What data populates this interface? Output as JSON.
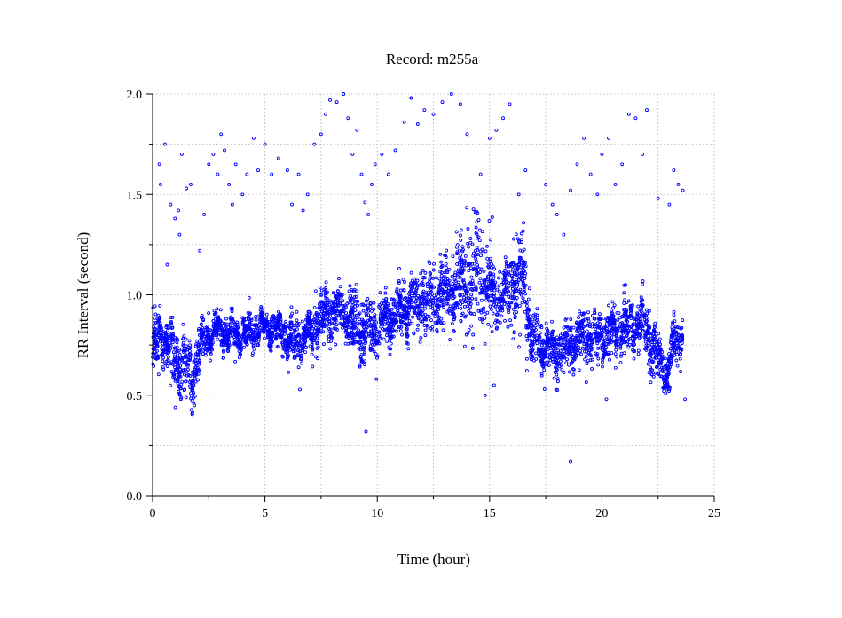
{
  "chart_data": {
    "type": "scatter",
    "title": "Record:  m255a",
    "xlabel": "Time (hour)",
    "ylabel": "RR Interval (second)",
    "xlim": [
      0,
      25
    ],
    "ylim": [
      0,
      2
    ],
    "x_ticks": [
      0,
      5,
      10,
      15,
      20,
      25
    ],
    "x_tick_labels": [
      "0",
      "5",
      "10",
      "15",
      "20",
      "25"
    ],
    "y_ticks": [
      0,
      0.5,
      1.0,
      1.5,
      2.0
    ],
    "y_tick_labels": [
      "0.0",
      "0.5",
      "1.0",
      "1.5",
      "2.0"
    ],
    "grid": true,
    "marker": "open-circle",
    "color": "#0000ff",
    "series": [
      {
        "trend_x": [
          0.0,
          0.3,
          0.6,
          0.9,
          1.2,
          1.5,
          1.8,
          2.0,
          2.3,
          2.6,
          3.0,
          3.5,
          4.0,
          4.5,
          5.0,
          5.5,
          6.0,
          6.5,
          7.0,
          7.5,
          8.0,
          8.5,
          9.0,
          9.5,
          10.0,
          10.5,
          11.0,
          11.5,
          12.0,
          12.5,
          13.0,
          13.5,
          14.0,
          14.5,
          15.0,
          15.5,
          16.0,
          16.5,
          16.8,
          17.2,
          17.6,
          18.0,
          18.5,
          19.0,
          19.5,
          20.0,
          20.5,
          21.0,
          21.5,
          22.0,
          22.3,
          22.6,
          22.9,
          23.2,
          23.6
        ],
        "trend_y": [
          0.72,
          0.8,
          0.78,
          0.7,
          0.65,
          0.62,
          0.58,
          0.7,
          0.78,
          0.8,
          0.83,
          0.8,
          0.8,
          0.82,
          0.85,
          0.82,
          0.78,
          0.75,
          0.8,
          0.88,
          0.92,
          0.9,
          0.85,
          0.8,
          0.82,
          0.88,
          0.92,
          0.95,
          0.96,
          0.98,
          1.0,
          1.02,
          1.08,
          1.1,
          1.05,
          0.98,
          1.05,
          1.1,
          0.82,
          0.75,
          0.72,
          0.7,
          0.75,
          0.78,
          0.8,
          0.78,
          0.82,
          0.85,
          0.85,
          0.82,
          0.72,
          0.68,
          0.6,
          0.75,
          0.8
        ],
        "spread": [
          0.12,
          0.1,
          0.08,
          0.12,
          0.14,
          0.15,
          0.12,
          0.1,
          0.08,
          0.07,
          0.07,
          0.07,
          0.06,
          0.06,
          0.06,
          0.06,
          0.08,
          0.1,
          0.1,
          0.1,
          0.1,
          0.1,
          0.12,
          0.12,
          0.1,
          0.1,
          0.1,
          0.1,
          0.12,
          0.12,
          0.14,
          0.14,
          0.2,
          0.2,
          0.16,
          0.08,
          0.16,
          0.2,
          0.12,
          0.1,
          0.1,
          0.1,
          0.1,
          0.1,
          0.1,
          0.1,
          0.1,
          0.1,
          0.1,
          0.1,
          0.1,
          0.1,
          0.08,
          0.1,
          0.08
        ],
        "outliers": [
          [
            0.3,
            1.65
          ],
          [
            0.35,
            1.55
          ],
          [
            0.55,
            1.75
          ],
          [
            0.65,
            1.15
          ],
          [
            0.8,
            1.45
          ],
          [
            1.0,
            1.38
          ],
          [
            1.15,
            1.42
          ],
          [
            1.2,
            1.3
          ],
          [
            1.3,
            1.7
          ],
          [
            1.5,
            1.53
          ],
          [
            1.7,
            1.55
          ],
          [
            2.1,
            1.22
          ],
          [
            2.3,
            1.4
          ],
          [
            2.5,
            1.65
          ],
          [
            2.7,
            1.7
          ],
          [
            2.9,
            1.6
          ],
          [
            3.05,
            1.8
          ],
          [
            3.2,
            1.72
          ],
          [
            3.4,
            1.55
          ],
          [
            3.55,
            1.45
          ],
          [
            3.7,
            1.65
          ],
          [
            4.0,
            1.5
          ],
          [
            4.2,
            1.6
          ],
          [
            4.5,
            1.78
          ],
          [
            4.7,
            1.62
          ],
          [
            5.0,
            1.75
          ],
          [
            5.3,
            1.6
          ],
          [
            5.6,
            1.68
          ],
          [
            6.0,
            1.62
          ],
          [
            6.2,
            1.45
          ],
          [
            6.5,
            1.6
          ],
          [
            6.7,
            1.42
          ],
          [
            6.9,
            1.5
          ],
          [
            7.2,
            1.75
          ],
          [
            7.5,
            1.8
          ],
          [
            7.7,
            1.9
          ],
          [
            7.9,
            1.97
          ],
          [
            8.2,
            1.96
          ],
          [
            8.5,
            2.0
          ],
          [
            8.7,
            1.88
          ],
          [
            8.9,
            1.7
          ],
          [
            9.1,
            1.82
          ],
          [
            9.3,
            1.6
          ],
          [
            9.45,
            1.46
          ],
          [
            9.6,
            1.4
          ],
          [
            9.75,
            1.55
          ],
          [
            9.9,
            1.65
          ],
          [
            10.2,
            1.7
          ],
          [
            10.5,
            1.6
          ],
          [
            10.8,
            1.72
          ],
          [
            11.2,
            1.86
          ],
          [
            11.5,
            1.98
          ],
          [
            11.8,
            1.85
          ],
          [
            12.1,
            1.92
          ],
          [
            12.5,
            1.9
          ],
          [
            12.9,
            1.96
          ],
          [
            13.3,
            2.0
          ],
          [
            13.7,
            1.95
          ],
          [
            14.0,
            1.8
          ],
          [
            14.6,
            1.6
          ],
          [
            15.0,
            1.78
          ],
          [
            15.3,
            1.82
          ],
          [
            15.6,
            1.88
          ],
          [
            15.9,
            1.95
          ],
          [
            16.3,
            1.5
          ],
          [
            16.6,
            1.62
          ],
          [
            17.5,
            1.55
          ],
          [
            17.8,
            1.45
          ],
          [
            18.0,
            1.4
          ],
          [
            18.3,
            1.3
          ],
          [
            18.6,
            1.52
          ],
          [
            18.9,
            1.65
          ],
          [
            19.2,
            1.78
          ],
          [
            19.5,
            1.6
          ],
          [
            19.8,
            1.5
          ],
          [
            20.0,
            1.7
          ],
          [
            20.3,
            1.78
          ],
          [
            20.6,
            1.55
          ],
          [
            20.9,
            1.65
          ],
          [
            21.2,
            1.9
          ],
          [
            21.5,
            1.88
          ],
          [
            21.8,
            1.7
          ],
          [
            22.0,
            1.92
          ],
          [
            22.5,
            1.48
          ],
          [
            23.0,
            1.45
          ],
          [
            23.2,
            1.62
          ],
          [
            23.4,
            1.55
          ],
          [
            23.6,
            1.52
          ],
          [
            23.7,
            0.48
          ],
          [
            9.5,
            0.32
          ],
          [
            18.6,
            0.17
          ],
          [
            14.8,
            0.5
          ],
          [
            15.2,
            0.55
          ],
          [
            20.2,
            0.48
          ]
        ]
      }
    ]
  }
}
